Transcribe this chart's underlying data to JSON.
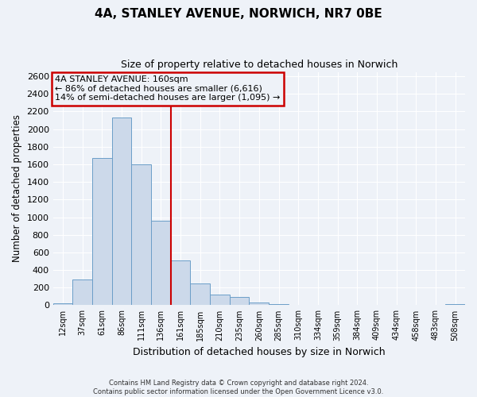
{
  "title": "4A, STANLEY AVENUE, NORWICH, NR7 0BE",
  "subtitle": "Size of property relative to detached houses in Norwich",
  "xlabel": "Distribution of detached houses by size in Norwich",
  "ylabel": "Number of detached properties",
  "bar_labels": [
    "12sqm",
    "37sqm",
    "61sqm",
    "86sqm",
    "111sqm",
    "136sqm",
    "161sqm",
    "185sqm",
    "210sqm",
    "235sqm",
    "260sqm",
    "285sqm",
    "310sqm",
    "334sqm",
    "359sqm",
    "384sqm",
    "409sqm",
    "434sqm",
    "458sqm",
    "483sqm",
    "508sqm"
  ],
  "bar_values": [
    20,
    295,
    1670,
    2130,
    1600,
    960,
    510,
    250,
    120,
    95,
    30,
    10,
    8,
    5,
    4,
    3,
    2,
    2,
    2,
    2,
    15
  ],
  "bar_color": "#ccd9ea",
  "bar_edge_color": "#6b9ec8",
  "vline_color": "#cc0000",
  "ylim": [
    0,
    2650
  ],
  "yticks": [
    0,
    200,
    400,
    600,
    800,
    1000,
    1200,
    1400,
    1600,
    1800,
    2000,
    2200,
    2400,
    2600
  ],
  "annotation_title": "4A STANLEY AVENUE: 160sqm",
  "annotation_line1": "← 86% of detached houses are smaller (6,616)",
  "annotation_line2": "14% of semi-detached houses are larger (1,095) →",
  "annotation_box_color": "#cc0000",
  "footer1": "Contains HM Land Registry data © Crown copyright and database right 2024.",
  "footer2": "Contains public sector information licensed under the Open Government Licence v3.0.",
  "background_color": "#eef2f8",
  "grid_color": "#ffffff"
}
